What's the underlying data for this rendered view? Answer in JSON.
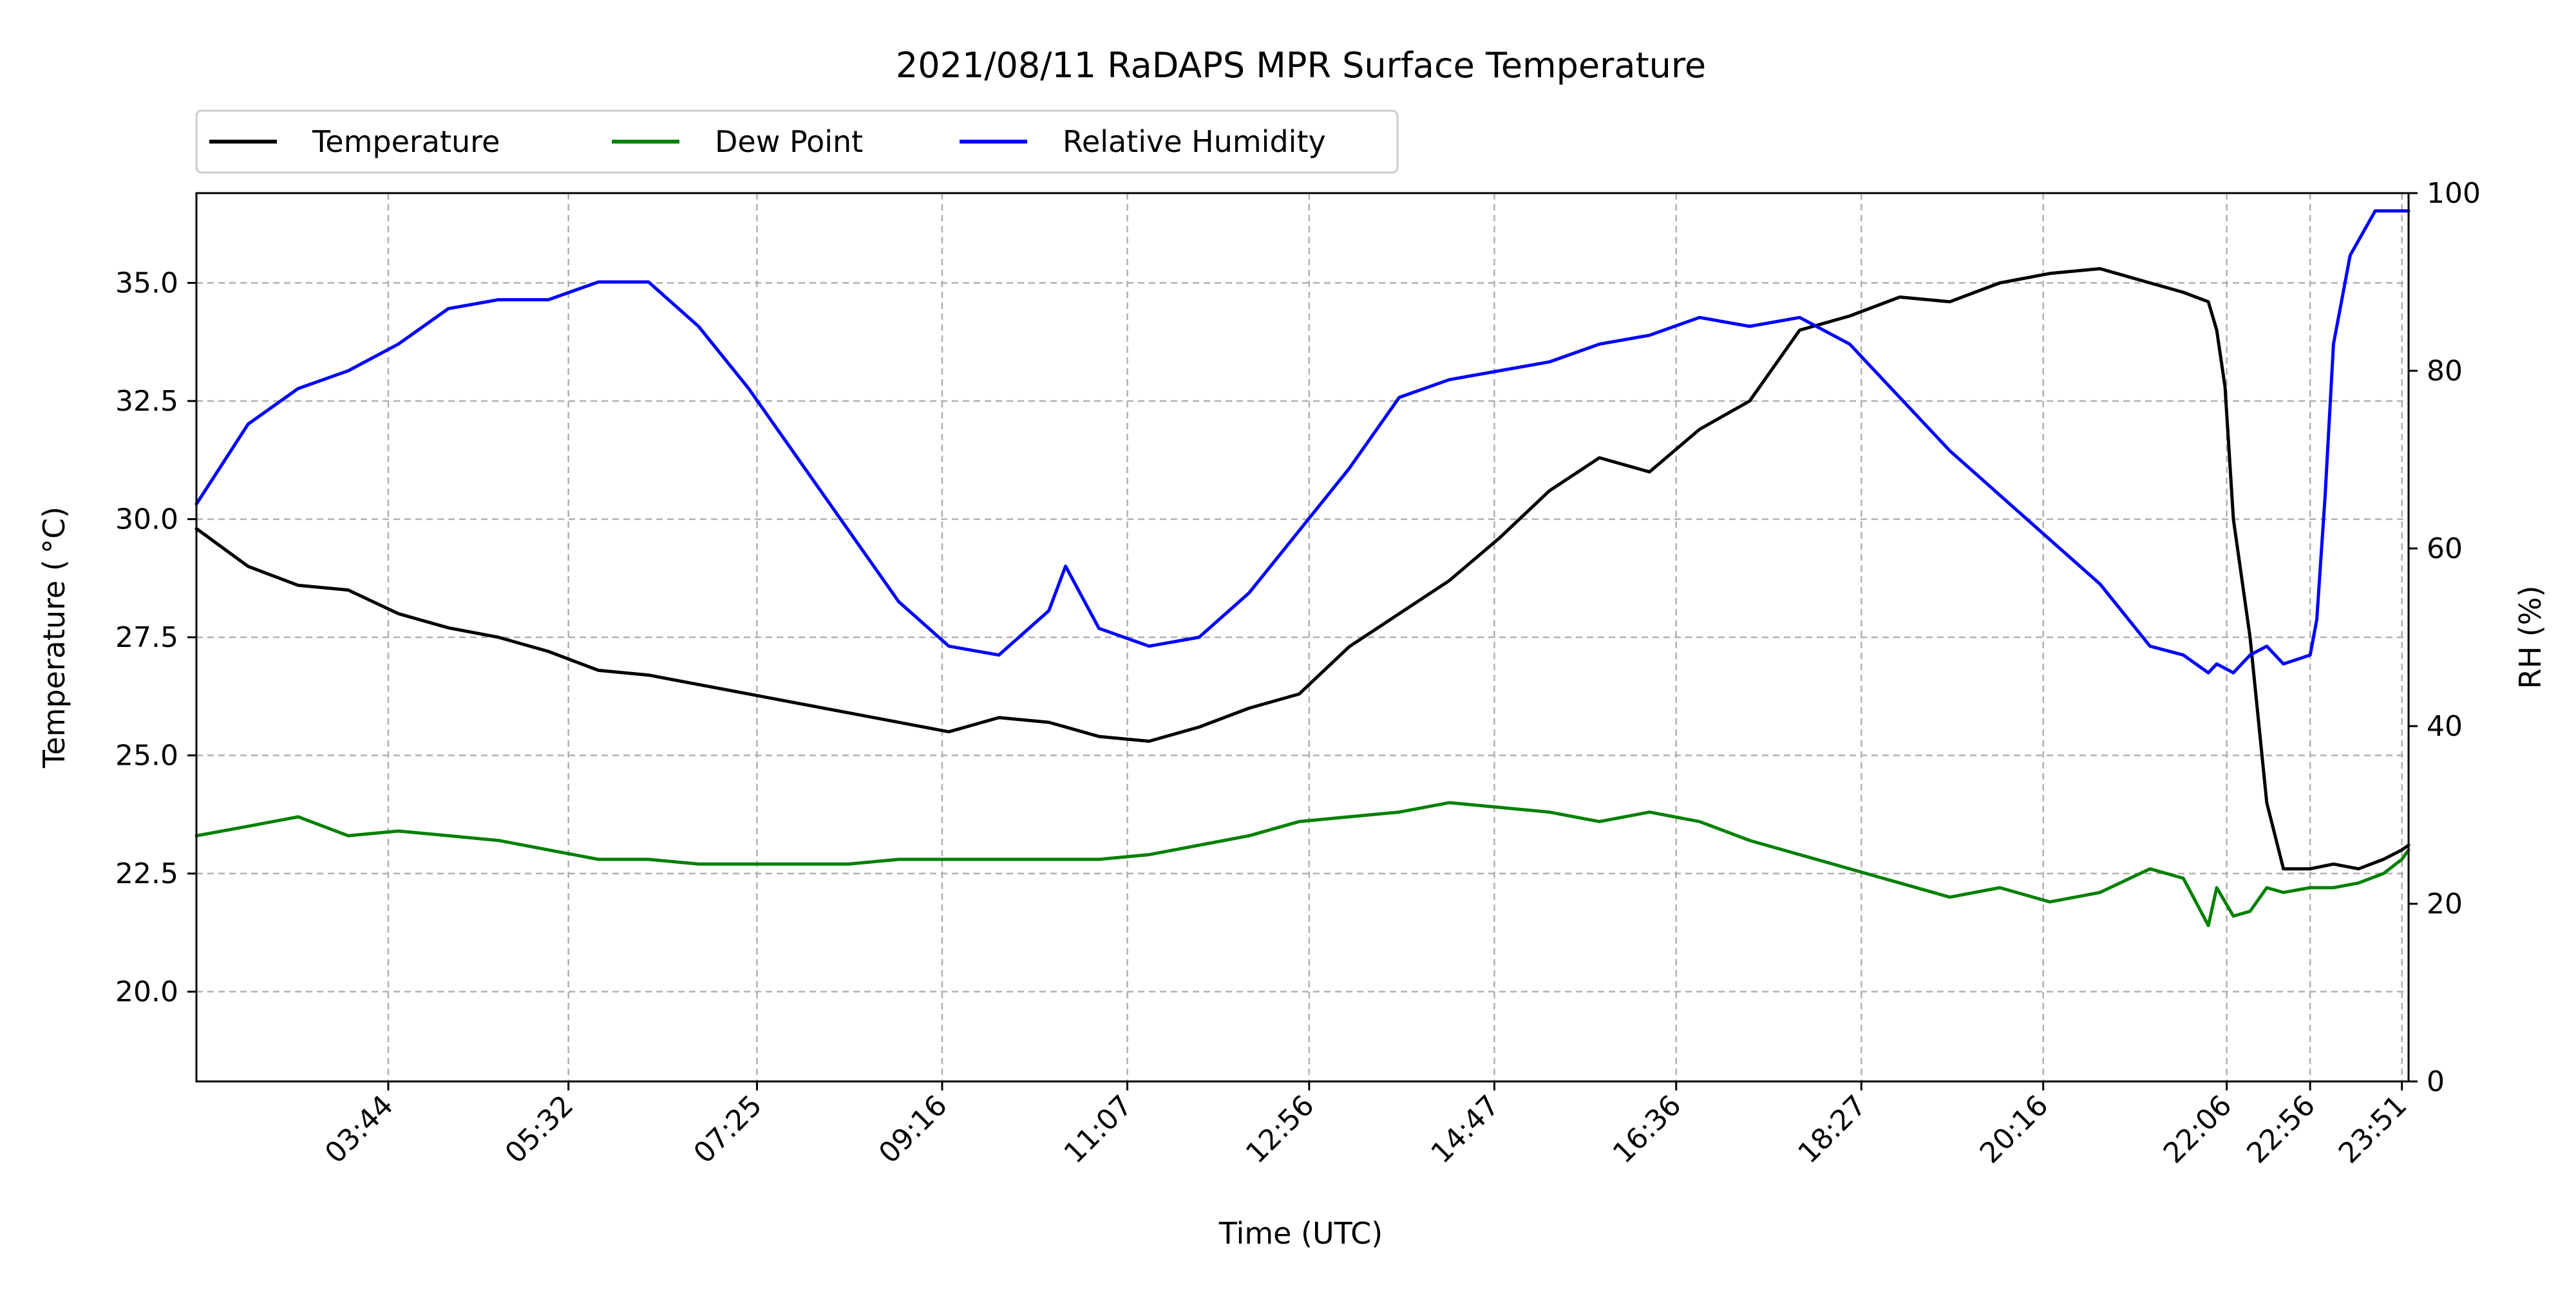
{
  "chart_data": {
    "type": "line",
    "title": "2021/08/11 RaDAPS MPR Surface Temperature",
    "xlabel": "Time (UTC)",
    "ylabel": "Temperature ($^\\circ$C)",
    "ylabel_display": "Temperature ( °C)",
    "y2label": "RH (%)",
    "xlim": [
      "01:49",
      "23:55"
    ],
    "ylim": [
      18.1,
      36.9
    ],
    "y2lim": [
      0,
      100
    ],
    "grid": true,
    "legend_position": "top-left above plot",
    "xticks": [
      "03:44",
      "05:32",
      "07:25",
      "09:16",
      "11:07",
      "12:56",
      "14:47",
      "16:36",
      "18:27",
      "20:16",
      "22:06",
      "22:56",
      "23:51"
    ],
    "yticks": [
      20.0,
      22.5,
      25.0,
      27.5,
      30.0,
      32.5,
      35.0
    ],
    "y2ticks": [
      0,
      20,
      40,
      60,
      80,
      100
    ],
    "series": [
      {
        "name": "Temperature",
        "axis": "left",
        "color": "#000000",
        "x": [
          "01:49",
          "02:20",
          "02:50",
          "03:20",
          "03:50",
          "04:20",
          "04:50",
          "05:20",
          "05:50",
          "06:20",
          "06:50",
          "07:20",
          "07:50",
          "08:20",
          "08:50",
          "09:20",
          "09:50",
          "10:20",
          "10:50",
          "11:20",
          "11:50",
          "12:20",
          "12:50",
          "13:20",
          "13:50",
          "14:20",
          "14:50",
          "15:20",
          "15:50",
          "16:20",
          "16:50",
          "17:20",
          "17:50",
          "18:20",
          "18:50",
          "19:20",
          "19:50",
          "20:20",
          "20:50",
          "21:20",
          "21:40",
          "21:55",
          "22:00",
          "22:05",
          "22:10",
          "22:20",
          "22:30",
          "22:40",
          "22:56",
          "23:10",
          "23:25",
          "23:40",
          "23:51",
          "23:55"
        ],
        "y": [
          29.8,
          29.0,
          28.6,
          28.5,
          28.0,
          27.7,
          27.5,
          27.2,
          26.8,
          26.7,
          26.5,
          26.3,
          26.1,
          25.9,
          25.7,
          25.5,
          25.8,
          25.7,
          25.4,
          25.3,
          25.6,
          26.0,
          26.3,
          27.3,
          28.0,
          28.7,
          29.6,
          30.6,
          31.3,
          31.0,
          31.9,
          32.5,
          34.0,
          34.3,
          34.7,
          34.6,
          35.0,
          35.2,
          35.3,
          35.0,
          34.8,
          34.6,
          34.0,
          32.8,
          30.0,
          27.5,
          24.0,
          22.6,
          22.6,
          22.7,
          22.6,
          22.8,
          23.0,
          23.1
        ]
      },
      {
        "name": "Dew Point",
        "axis": "left",
        "color": "#008000",
        "x": [
          "01:49",
          "02:20",
          "02:50",
          "03:20",
          "03:50",
          "04:20",
          "04:50",
          "05:20",
          "05:50",
          "06:20",
          "06:50",
          "07:20",
          "07:50",
          "08:20",
          "08:50",
          "09:20",
          "09:50",
          "10:20",
          "10:50",
          "11:20",
          "11:50",
          "12:20",
          "12:50",
          "13:20",
          "13:50",
          "14:20",
          "14:50",
          "15:20",
          "15:50",
          "16:20",
          "16:50",
          "17:20",
          "17:50",
          "18:20",
          "18:50",
          "19:20",
          "19:50",
          "20:20",
          "20:50",
          "21:20",
          "21:40",
          "21:55",
          "22:00",
          "22:10",
          "22:20",
          "22:30",
          "22:40",
          "22:56",
          "23:10",
          "23:25",
          "23:40",
          "23:51",
          "23:55"
        ],
        "y": [
          23.3,
          23.5,
          23.7,
          23.3,
          23.4,
          23.3,
          23.2,
          23.0,
          22.8,
          22.8,
          22.7,
          22.7,
          22.7,
          22.7,
          22.8,
          22.8,
          22.8,
          22.8,
          22.8,
          22.9,
          23.1,
          23.3,
          23.6,
          23.7,
          23.8,
          24.0,
          23.9,
          23.8,
          23.6,
          23.8,
          23.6,
          23.2,
          22.9,
          22.6,
          22.3,
          22.0,
          22.2,
          21.9,
          22.1,
          22.6,
          22.4,
          21.4,
          22.2,
          21.6,
          21.7,
          22.2,
          22.1,
          22.2,
          22.2,
          22.3,
          22.5,
          22.8,
          23.0
        ]
      },
      {
        "name": "Relative Humidity",
        "axis": "right",
        "color": "#0000ff",
        "x": [
          "01:49",
          "02:20",
          "02:50",
          "03:20",
          "03:50",
          "04:20",
          "04:50",
          "05:20",
          "05:50",
          "06:20",
          "06:50",
          "07:20",
          "07:50",
          "08:20",
          "08:50",
          "09:20",
          "09:50",
          "10:20",
          "10:30",
          "10:50",
          "11:20",
          "11:50",
          "12:20",
          "12:50",
          "13:20",
          "13:50",
          "14:20",
          "14:50",
          "15:20",
          "15:50",
          "16:20",
          "16:50",
          "17:20",
          "17:50",
          "18:20",
          "18:50",
          "19:20",
          "19:50",
          "20:20",
          "20:50",
          "21:20",
          "21:40",
          "21:55",
          "22:00",
          "22:10",
          "22:20",
          "22:30",
          "22:40",
          "22:56",
          "23:00",
          "23:05",
          "23:10",
          "23:20",
          "23:35",
          "23:51",
          "23:55"
        ],
        "y": [
          65,
          74,
          78,
          80,
          83,
          87,
          88,
          88,
          90,
          90,
          85,
          78,
          70,
          62,
          54,
          49,
          48,
          53,
          58,
          51,
          49,
          50,
          55,
          62,
          69,
          77,
          79,
          80,
          81,
          83,
          84,
          86,
          85,
          86,
          83,
          77,
          71,
          66,
          61,
          56,
          49,
          48,
          46,
          47,
          46,
          48,
          49,
          47,
          48,
          52,
          66,
          83,
          93,
          98,
          98,
          98
        ]
      }
    ]
  }
}
